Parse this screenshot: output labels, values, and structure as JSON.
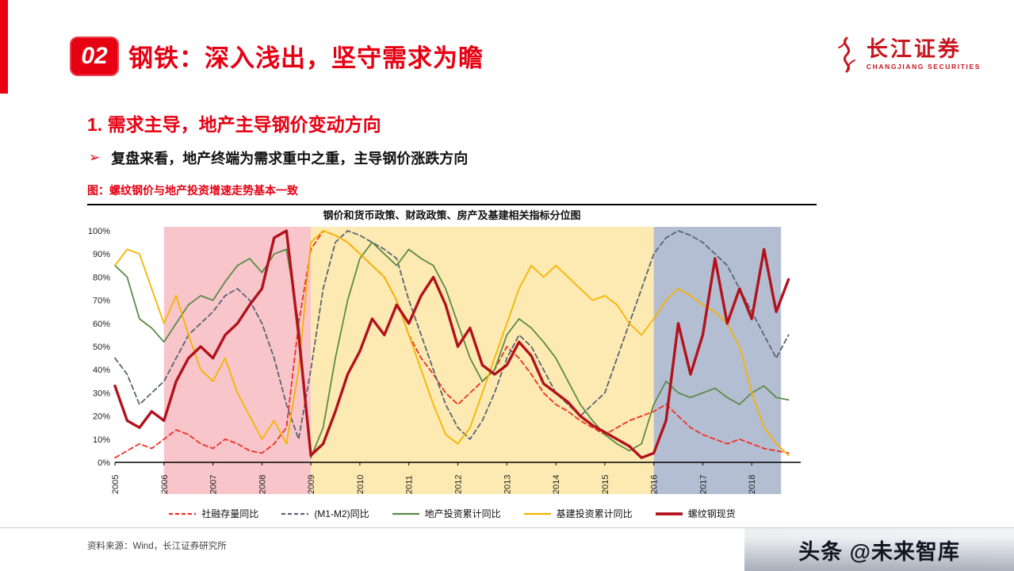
{
  "header": {
    "badge": "02",
    "title": "钢铁：深入浅出，坚守需求为瞻",
    "logo_name": "长江证券",
    "logo_subtitle": "CHANGJIANG SECURITIES"
  },
  "body": {
    "section_heading": "1. 需求主导，地产主导钢价变动方向",
    "bullet_marker": "➢",
    "bullet_text": "复盘来看，地产终端为需求重中之重，主导钢价涨跌方向",
    "figure_caption": "图：螺纹钢价与地产投资增速走势基本一致"
  },
  "footer": {
    "source": "资料来源：Wind，长江证券研究所",
    "watermark": "头条 @未来智库"
  },
  "colors": {
    "accent_red": "#e60012",
    "logo_red": "#c8161e",
    "axis_black": "#000000"
  },
  "chart_data": {
    "type": "line",
    "title": "钢价和货币政策、财政政策、房产及基建相关指标分位图",
    "xlim": [
      2005,
      2019
    ],
    "ylim": [
      0,
      100
    ],
    "y_tick_step": 10,
    "y_tick_suffix": "%",
    "grid": false,
    "legend_position": "bottom",
    "x_start": 2005,
    "x_step": 0.25,
    "x_tick_labels": [
      "2005",
      "2006",
      "2007",
      "2008",
      "2009",
      "2010",
      "2011",
      "2012",
      "2013",
      "2014",
      "2015",
      "2016",
      "2017",
      "2018"
    ],
    "bands": [
      {
        "name": "pink-band",
        "from": 2006,
        "to": 2009,
        "color": "#f8c5ca"
      },
      {
        "name": "yellow-band",
        "from": 2009,
        "to": 2016,
        "color": "#fdeab2"
      },
      {
        "name": "blue-band",
        "from": 2016,
        "to": 2018.6,
        "color": "#b4bed2"
      }
    ],
    "series": [
      {
        "name": "社融存量同比",
        "color": "#ee3124",
        "style": "dashed",
        "width": 1.8,
        "values": [
          2,
          5,
          8,
          6,
          10,
          14,
          12,
          8,
          6,
          10,
          8,
          5,
          4,
          8,
          15,
          60,
          92,
          100,
          98,
          95,
          90,
          85,
          80,
          70,
          55,
          45,
          38,
          30,
          25,
          30,
          35,
          40,
          50,
          45,
          38,
          30,
          25,
          22,
          18,
          15,
          12,
          15,
          18,
          20,
          22,
          25,
          20,
          15,
          12,
          10,
          8,
          10,
          8,
          6,
          5,
          4
        ]
      },
      {
        "name": "(M1-M2)同比",
        "color": "#5a6372",
        "style": "dashed",
        "width": 1.8,
        "values": [
          45,
          38,
          25,
          30,
          35,
          45,
          55,
          60,
          65,
          72,
          75,
          70,
          60,
          45,
          25,
          10,
          40,
          75,
          95,
          100,
          98,
          95,
          92,
          88,
          70,
          55,
          40,
          25,
          15,
          10,
          18,
          30,
          45,
          55,
          50,
          40,
          30,
          25,
          20,
          25,
          30,
          45,
          60,
          75,
          90,
          97,
          100,
          98,
          95,
          90,
          85,
          75,
          65,
          55,
          45,
          55
        ]
      },
      {
        "name": "地产投资累计同比",
        "color": "#5c8a46",
        "style": "solid",
        "width": 1.8,
        "values": [
          85,
          80,
          62,
          58,
          52,
          60,
          68,
          72,
          70,
          78,
          85,
          88,
          82,
          90,
          92,
          60,
          2,
          15,
          45,
          70,
          88,
          95,
          90,
          85,
          92,
          88,
          85,
          75,
          60,
          45,
          35,
          40,
          55,
          62,
          58,
          52,
          45,
          35,
          25,
          18,
          12,
          8,
          5,
          8,
          25,
          35,
          30,
          28,
          30,
          32,
          28,
          25,
          30,
          33,
          28,
          27
        ]
      },
      {
        "name": "基建投资累计同比",
        "color": "#f5b400",
        "style": "solid",
        "width": 1.8,
        "values": [
          85,
          92,
          90,
          75,
          60,
          72,
          55,
          40,
          35,
          45,
          30,
          20,
          10,
          18,
          8,
          40,
          95,
          100,
          98,
          95,
          90,
          85,
          80,
          70,
          55,
          40,
          25,
          12,
          8,
          15,
          30,
          45,
          60,
          75,
          85,
          80,
          85,
          80,
          75,
          70,
          72,
          68,
          60,
          55,
          62,
          70,
          75,
          72,
          68,
          65,
          60,
          50,
          30,
          15,
          8,
          3
        ]
      },
      {
        "name": "螺纹钢现货",
        "color": "#b2121b",
        "style": "solid",
        "width": 3.4,
        "values": [
          33,
          18,
          15,
          22,
          18,
          35,
          45,
          50,
          45,
          55,
          60,
          68,
          75,
          97,
          100,
          55,
          3,
          8,
          22,
          38,
          48,
          62,
          55,
          68,
          60,
          72,
          80,
          68,
          50,
          58,
          42,
          38,
          42,
          52,
          46,
          34,
          30,
          26,
          20,
          16,
          13,
          10,
          7,
          2,
          4,
          18,
          60,
          38,
          55,
          88,
          60,
          75,
          62,
          92,
          65,
          79
        ]
      }
    ]
  }
}
